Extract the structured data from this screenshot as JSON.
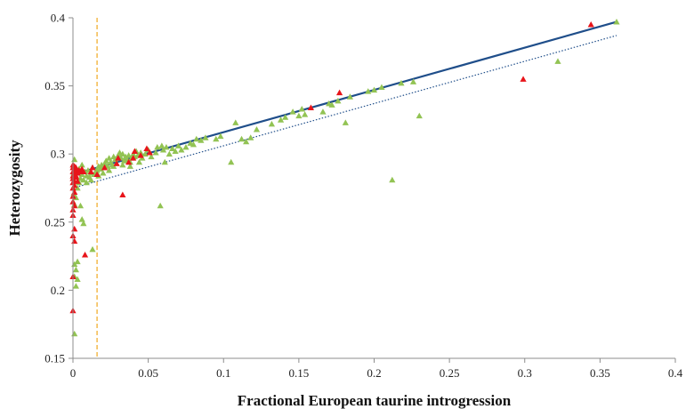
{
  "chart_data": {
    "type": "scatter",
    "title": "",
    "xlabel": "Fractional European taurine introgression",
    "ylabel": "Heterozygosity",
    "xlim": [
      0,
      0.4
    ],
    "ylim": [
      0.15,
      0.4
    ],
    "x_ticks": [
      "0",
      "0.05",
      "0.1",
      "0.15",
      "0.2",
      "0.25",
      "0.3",
      "0.35",
      "0.4"
    ],
    "y_ticks": [
      "0.15",
      "0.2",
      "0.25",
      "0.3",
      "0.35",
      "0.4"
    ],
    "grid": false,
    "legend": "none",
    "colors": {
      "green_series": "#92c353",
      "red_series": "#e8141a",
      "solid_line": "#1f4e8a",
      "dotted_line": "#1f4e8a",
      "threshold_line": "#f0a820",
      "axis": "#8c8c8c"
    },
    "series": [
      {
        "marker": "triangle",
        "color": "#92c353",
        "points": [
          [
            0.001,
            0.168
          ],
          [
            0.002,
            0.203
          ],
          [
            0.001,
            0.21
          ],
          [
            0.002,
            0.215
          ],
          [
            0.003,
            0.208
          ],
          [
            0.001,
            0.219
          ],
          [
            0.003,
            0.221
          ],
          [
            0.006,
            0.252
          ],
          [
            0.007,
            0.249
          ],
          [
            0.005,
            0.262
          ],
          [
            0.001,
            0.263
          ],
          [
            0.013,
            0.23
          ],
          [
            0.002,
            0.268
          ],
          [
            0.003,
            0.275
          ],
          [
            0.004,
            0.279
          ],
          [
            0.005,
            0.282
          ],
          [
            0.006,
            0.285
          ],
          [
            0.007,
            0.281
          ],
          [
            0.008,
            0.287
          ],
          [
            0.009,
            0.284
          ],
          [
            0.01,
            0.288
          ],
          [
            0.011,
            0.283
          ],
          [
            0.012,
            0.286
          ],
          [
            0.013,
            0.29
          ],
          [
            0.014,
            0.285
          ],
          [
            0.015,
            0.287
          ],
          [
            0.016,
            0.288
          ],
          [
            0.017,
            0.291
          ],
          [
            0.018,
            0.289
          ],
          [
            0.019,
            0.292
          ],
          [
            0.02,
            0.29
          ],
          [
            0.021,
            0.293
          ],
          [
            0.022,
            0.295
          ],
          [
            0.023,
            0.291
          ],
          [
            0.024,
            0.297
          ],
          [
            0.025,
            0.294
          ],
          [
            0.026,
            0.292
          ],
          [
            0.027,
            0.298
          ],
          [
            0.028,
            0.296
          ],
          [
            0.029,
            0.293
          ],
          [
            0.03,
            0.299
          ],
          [
            0.031,
            0.301
          ],
          [
            0.032,
            0.297
          ],
          [
            0.033,
            0.3
          ],
          [
            0.034,
            0.295
          ],
          [
            0.035,
            0.298
          ],
          [
            0.036,
            0.296
          ],
          [
            0.037,
            0.299
          ],
          [
            0.038,
            0.294
          ],
          [
            0.039,
            0.297
          ],
          [
            0.04,
            0.3
          ],
          [
            0.041,
            0.298
          ],
          [
            0.042,
            0.302
          ],
          [
            0.043,
            0.299
          ],
          [
            0.045,
            0.301
          ],
          [
            0.046,
            0.297
          ],
          [
            0.048,
            0.3
          ],
          [
            0.05,
            0.303
          ],
          [
            0.052,
            0.298
          ],
          [
            0.055,
            0.301
          ],
          [
            0.056,
            0.305
          ],
          [
            0.058,
            0.262
          ],
          [
            0.059,
            0.306
          ],
          [
            0.06,
            0.303
          ],
          [
            0.061,
            0.294
          ],
          [
            0.062,
            0.305
          ],
          [
            0.064,
            0.3
          ],
          [
            0.066,
            0.304
          ],
          [
            0.068,
            0.302
          ],
          [
            0.07,
            0.306
          ],
          [
            0.072,
            0.303
          ],
          [
            0.075,
            0.305
          ],
          [
            0.078,
            0.308
          ],
          [
            0.08,
            0.307
          ],
          [
            0.082,
            0.311
          ],
          [
            0.085,
            0.31
          ],
          [
            0.088,
            0.312
          ],
          [
            0.095,
            0.311
          ],
          [
            0.098,
            0.313
          ],
          [
            0.105,
            0.294
          ],
          [
            0.108,
            0.323
          ],
          [
            0.112,
            0.311
          ],
          [
            0.115,
            0.309
          ],
          [
            0.118,
            0.312
          ],
          [
            0.122,
            0.318
          ],
          [
            0.132,
            0.322
          ],
          [
            0.138,
            0.325
          ],
          [
            0.141,
            0.327
          ],
          [
            0.146,
            0.331
          ],
          [
            0.15,
            0.328
          ],
          [
            0.152,
            0.333
          ],
          [
            0.154,
            0.329
          ],
          [
            0.166,
            0.331
          ],
          [
            0.17,
            0.337
          ],
          [
            0.172,
            0.336
          ],
          [
            0.176,
            0.339
          ],
          [
            0.181,
            0.323
          ],
          [
            0.184,
            0.342
          ],
          [
            0.196,
            0.346
          ],
          [
            0.2,
            0.347
          ],
          [
            0.205,
            0.349
          ],
          [
            0.212,
            0.281
          ],
          [
            0.218,
            0.352
          ],
          [
            0.226,
            0.353
          ],
          [
            0.23,
            0.328
          ],
          [
            0.322,
            0.368
          ],
          [
            0.361,
            0.397
          ],
          [
            0.006,
            0.292
          ],
          [
            0.009,
            0.279
          ],
          [
            0.012,
            0.281
          ],
          [
            0.017,
            0.284
          ],
          [
            0.02,
            0.286
          ],
          [
            0.024,
            0.288
          ],
          [
            0.027,
            0.291
          ],
          [
            0.033,
            0.292
          ],
          [
            0.038,
            0.291
          ],
          [
            0.044,
            0.294
          ],
          [
            0.004,
            0.289
          ],
          [
            0.001,
            0.296
          ],
          [
            0.0005,
            0.286
          ],
          [
            0.0005,
            0.28
          ],
          [
            0.0005,
            0.271
          ]
        ]
      },
      {
        "marker": "triangle",
        "color": "#e8141a",
        "points": [
          [
            0.0,
            0.185
          ],
          [
            0.0,
            0.21
          ],
          [
            0.001,
            0.236
          ],
          [
            0.0,
            0.24
          ],
          [
            0.001,
            0.245
          ],
          [
            0.0,
            0.255
          ],
          [
            0.0,
            0.259
          ],
          [
            0.001,
            0.262
          ],
          [
            0.0,
            0.265
          ],
          [
            0.0,
            0.269
          ],
          [
            0.001,
            0.272
          ],
          [
            0.0,
            0.275
          ],
          [
            0.001,
            0.277
          ],
          [
            0.0,
            0.279
          ],
          [
            0.001,
            0.28
          ],
          [
            0.0,
            0.282
          ],
          [
            0.002,
            0.283
          ],
          [
            0.0,
            0.284
          ],
          [
            0.001,
            0.285
          ],
          [
            0.002,
            0.286
          ],
          [
            0.003,
            0.286
          ],
          [
            0.0,
            0.287
          ],
          [
            0.001,
            0.288
          ],
          [
            0.002,
            0.289
          ],
          [
            0.004,
            0.288
          ],
          [
            0.005,
            0.287
          ],
          [
            0.006,
            0.289
          ],
          [
            0.007,
            0.287
          ],
          [
            0.0,
            0.29
          ],
          [
            0.001,
            0.291
          ],
          [
            0.0,
            0.292
          ],
          [
            0.002,
            0.29
          ],
          [
            0.008,
            0.226
          ],
          [
            0.012,
            0.287
          ],
          [
            0.013,
            0.29
          ],
          [
            0.016,
            0.285
          ],
          [
            0.021,
            0.29
          ],
          [
            0.029,
            0.293
          ],
          [
            0.03,
            0.297
          ],
          [
            0.033,
            0.27
          ],
          [
            0.037,
            0.294
          ],
          [
            0.04,
            0.297
          ],
          [
            0.041,
            0.302
          ],
          [
            0.045,
            0.299
          ],
          [
            0.049,
            0.304
          ],
          [
            0.051,
            0.301
          ],
          [
            0.158,
            0.334
          ],
          [
            0.177,
            0.345
          ],
          [
            0.299,
            0.355
          ],
          [
            0.344,
            0.395
          ],
          [
            0.003,
            0.28
          ],
          [
            0.002,
            0.284
          ]
        ]
      }
    ],
    "lines": [
      {
        "style": "solid",
        "x": [
          0.0,
          0.361
        ],
        "y": [
          0.285,
          0.397
        ]
      },
      {
        "style": "dotted",
        "x": [
          0.0,
          0.361
        ],
        "y": [
          0.275,
          0.387
        ]
      },
      {
        "style": "dashed",
        "orientation": "vertical",
        "x": 0.016
      }
    ]
  }
}
